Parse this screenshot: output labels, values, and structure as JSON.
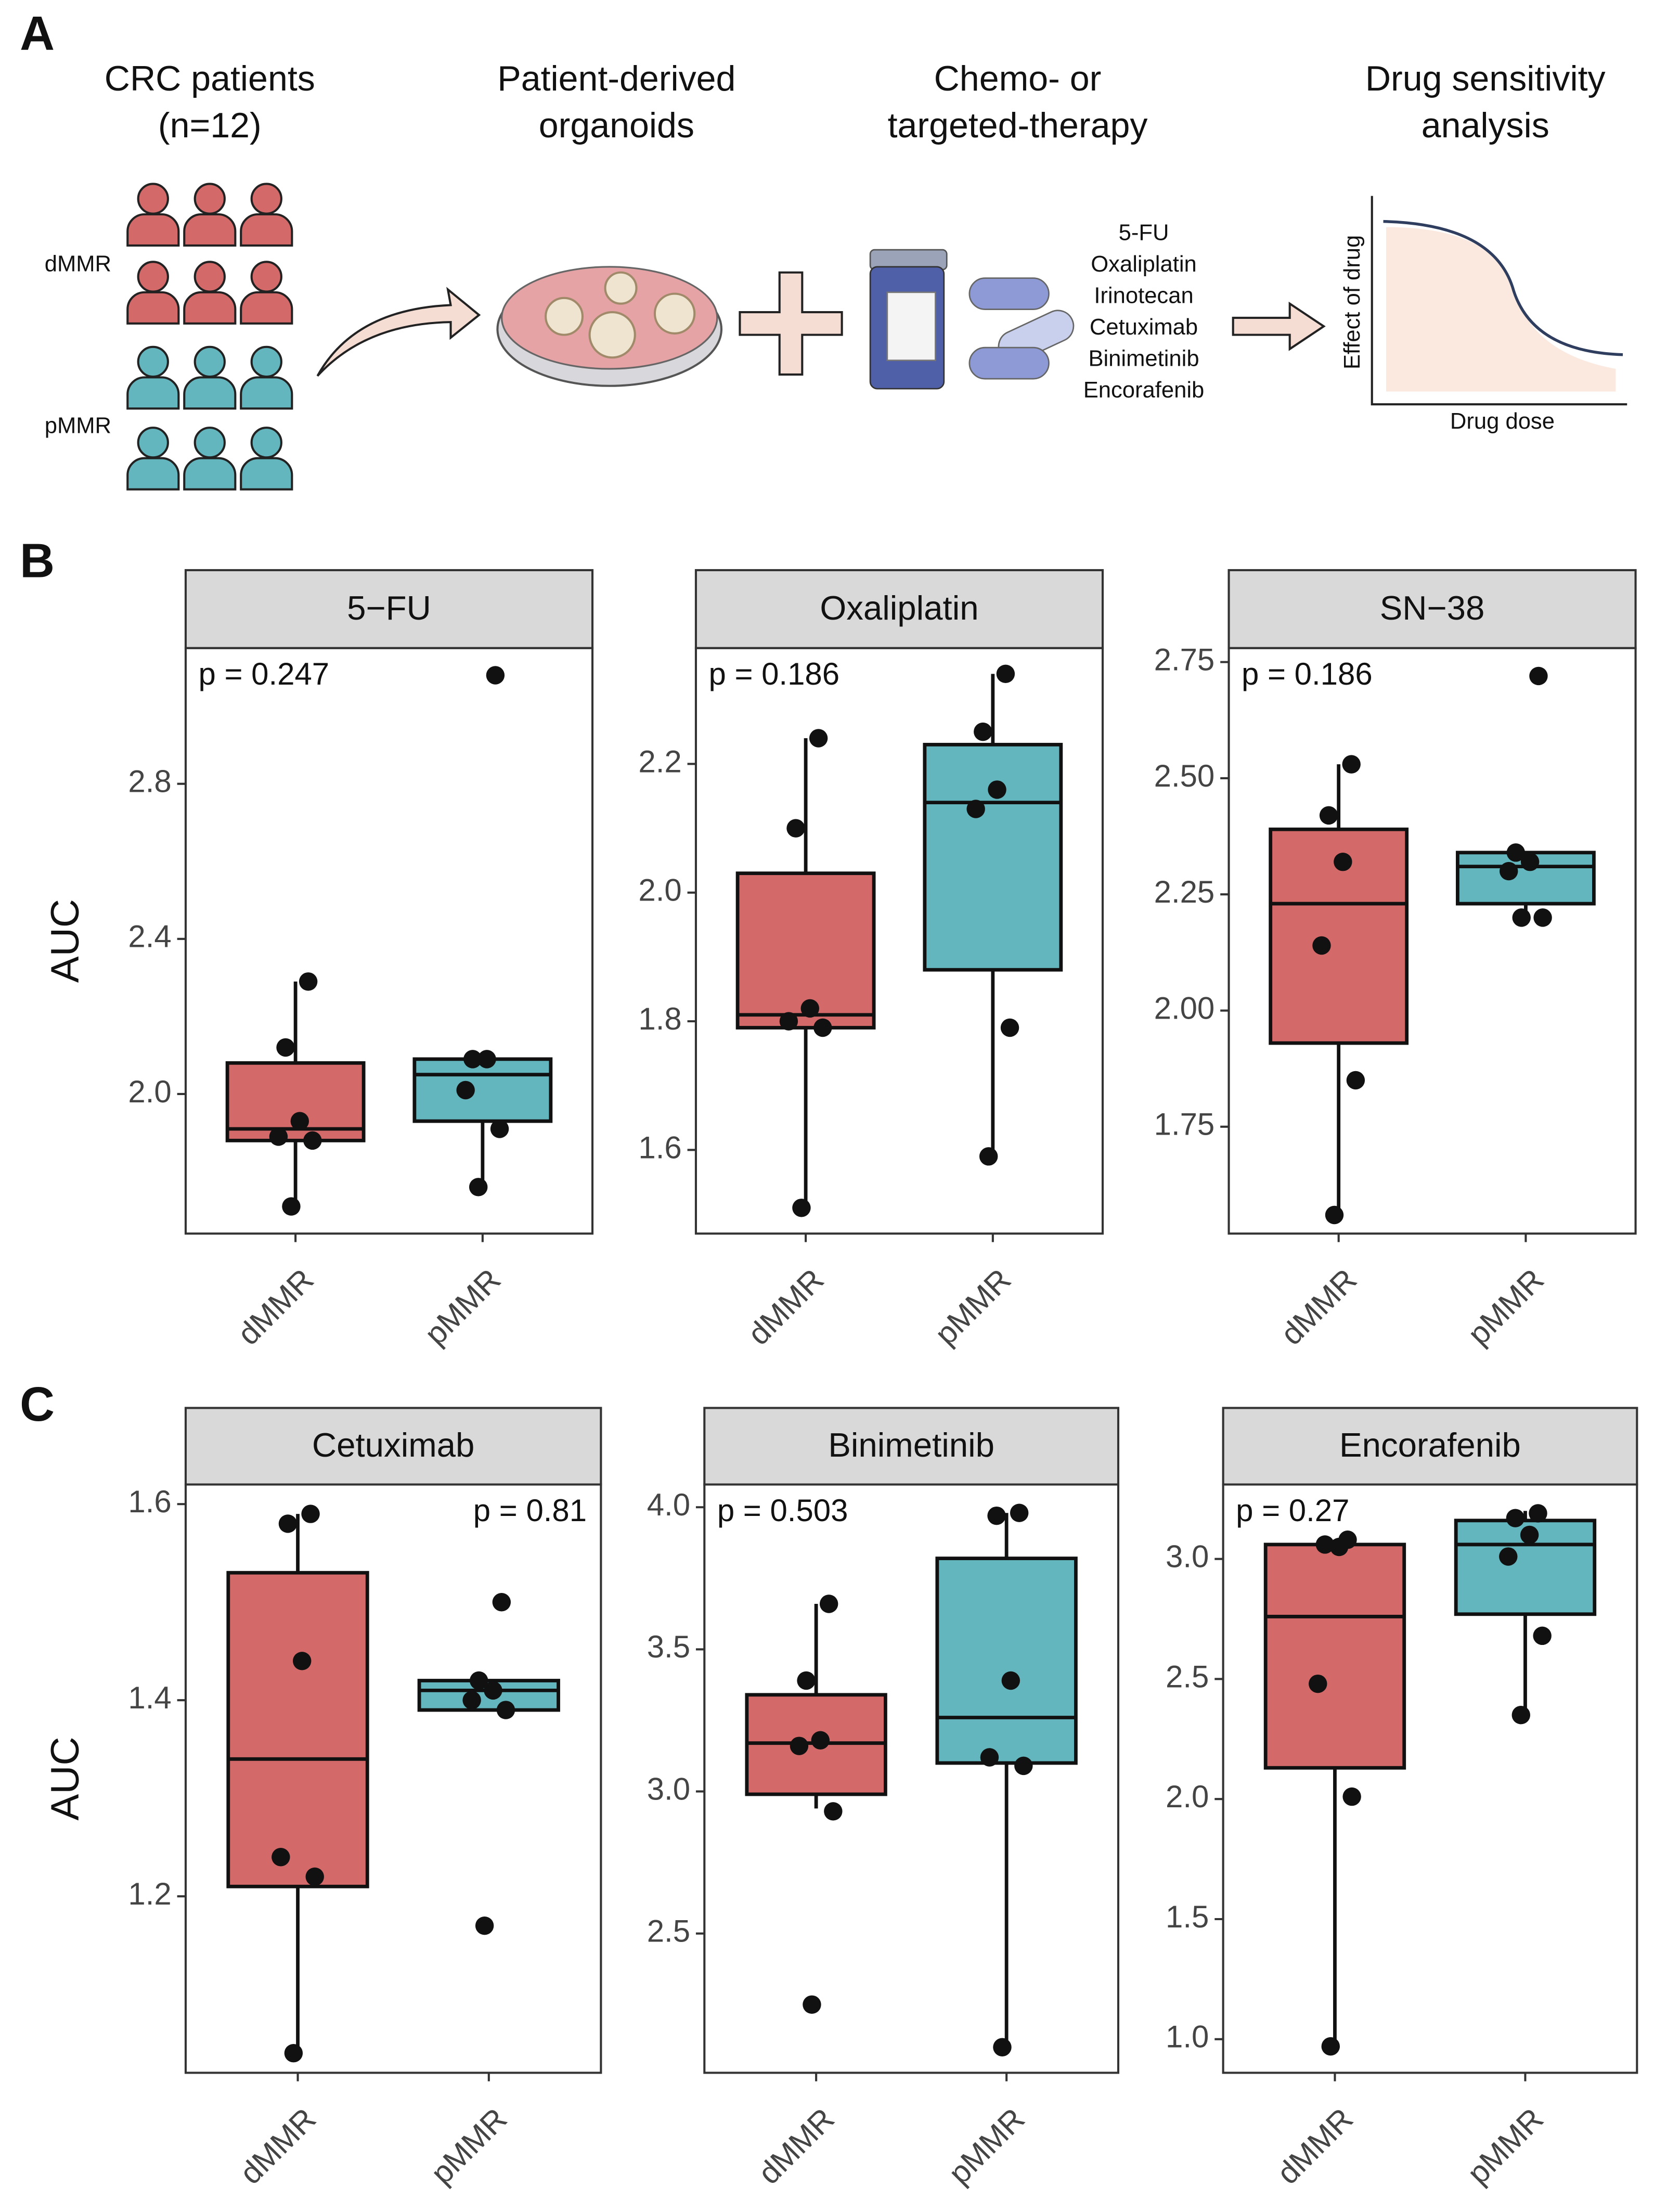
{
  "panel_labels": [
    "A",
    "B",
    "C"
  ],
  "schematic": {
    "steps": [
      {
        "title": [
          "CRC patients",
          "(n=12)"
        ]
      },
      {
        "title": [
          "Patient-derived",
          "organoids"
        ]
      },
      {
        "title": [
          "Chemo- or",
          "targeted-therapy"
        ]
      },
      {
        "title": [
          "Drug sensitivity",
          "analysis"
        ]
      }
    ],
    "groups": [
      "dMMR",
      "pMMR"
    ],
    "drugs": [
      "5-FU",
      "Oxaliplatin",
      "Irinotecan",
      "Cetuximab",
      "Binimetinib",
      "Encorafenib"
    ],
    "curve_y_label": "Effect of drug",
    "curve_x_label": "Drug dose"
  },
  "chart_data": [
    {
      "type": "box",
      "title": "5−FU",
      "annotation": "p =  0.247",
      "annotation_position": "top-left",
      "y_label": "AUC",
      "ylim": [
        1.64,
        3.15
      ],
      "yticks": [
        {
          "value": 2,
          "label": "2.0"
        },
        2.4,
        2.8
      ],
      "categories": [
        "dMMR",
        "pMMR"
      ],
      "boxes": [
        {
          "color": "#d4696a",
          "whisker_low": 1.71,
          "q1": 1.88,
          "median": 1.91,
          "q3": 2.08,
          "whisker_high": 2.29,
          "points": [
            2.29,
            2.12,
            1.93,
            1.89,
            1.88,
            1.71
          ]
        },
        {
          "color": "#63b6bd",
          "whisker_low": 1.76,
          "q1": 1.93,
          "median": 2.05,
          "q3": 2.09,
          "whisker_high": 2.09,
          "points": [
            3.08,
            2.09,
            2.09,
            2.01,
            1.91,
            1.76
          ]
        }
      ]
    },
    {
      "type": "box",
      "title": "Oxaliplatin",
      "annotation": "p =  0.186",
      "annotation_position": "top-left",
      "ylim": [
        1.47,
        2.38
      ],
      "yticks": [
        1.6,
        1.8,
        {
          "value": 2,
          "label": "2.0"
        },
        2.2
      ],
      "categories": [
        "dMMR",
        "pMMR"
      ],
      "boxes": [
        {
          "color": "#d4696a",
          "whisker_low": 1.51,
          "q1": 1.79,
          "median": 1.81,
          "q3": 2.03,
          "whisker_high": 2.24,
          "points": [
            2.24,
            2.1,
            1.82,
            1.8,
            1.79,
            1.51
          ]
        },
        {
          "color": "#63b6bd",
          "whisker_low": 1.59,
          "q1": 1.88,
          "median": 2.14,
          "q3": 2.23,
          "whisker_high": 2.34,
          "points": [
            2.34,
            2.25,
            2.16,
            2.13,
            1.79,
            1.59
          ]
        }
      ]
    },
    {
      "type": "box",
      "title": "SN−38",
      "annotation": "p =  0.186",
      "annotation_position": "top-left",
      "ylim": [
        1.52,
        2.78
      ],
      "yticks": [
        1.75,
        {
          "value": 2,
          "label": "2.00"
        },
        2.25,
        {
          "value": 2.5,
          "label": "2.50"
        },
        2.75
      ],
      "categories": [
        "dMMR",
        "pMMR"
      ],
      "boxes": [
        {
          "color": "#d4696a",
          "whisker_low": 1.56,
          "q1": 1.93,
          "median": 2.23,
          "q3": 2.39,
          "whisker_high": 2.53,
          "points": [
            2.53,
            2.42,
            2.32,
            2.14,
            1.85,
            1.56
          ]
        },
        {
          "color": "#63b6bd",
          "whisker_low": 2.2,
          "q1": 2.23,
          "median": 2.31,
          "q3": 2.34,
          "whisker_high": 2.34,
          "points": [
            2.72,
            2.34,
            2.32,
            2.3,
            2.2,
            2.2
          ]
        }
      ]
    },
    {
      "type": "box",
      "title": "Cetuximab",
      "annotation": "p =  0.81",
      "annotation_position": "top-right",
      "y_label": "AUC",
      "ylim": [
        1.02,
        1.62
      ],
      "yticks": [
        1.2,
        1.4,
        1.6
      ],
      "categories": [
        "dMMR",
        "pMMR"
      ],
      "boxes": [
        {
          "color": "#d4696a",
          "whisker_low": 1.04,
          "q1": 1.21,
          "median": 1.34,
          "q3": 1.53,
          "whisker_high": 1.59,
          "points": [
            1.59,
            1.58,
            1.44,
            1.24,
            1.22,
            1.04
          ]
        },
        {
          "color": "#63b6bd",
          "whisker_low": 1.39,
          "q1": 1.39,
          "median": 1.41,
          "q3": 1.42,
          "whisker_high": 1.42,
          "points": [
            1.5,
            1.42,
            1.41,
            1.4,
            1.39,
            1.17
          ]
        }
      ]
    },
    {
      "type": "box",
      "title": "Binimetinib",
      "annotation": "p =  0.503",
      "annotation_position": "top-left",
      "ylim": [
        2.01,
        4.08
      ],
      "yticks": [
        2.5,
        {
          "value": 3,
          "label": "3.0"
        },
        3.5,
        {
          "value": 4,
          "label": "4.0"
        }
      ],
      "categories": [
        "dMMR",
        "pMMR"
      ],
      "boxes": [
        {
          "color": "#d4696a",
          "whisker_low": 2.94,
          "q1": 2.99,
          "median": 3.17,
          "q3": 3.34,
          "whisker_high": 3.66,
          "points": [
            3.66,
            3.39,
            3.18,
            3.16,
            2.93,
            2.25
          ]
        },
        {
          "color": "#63b6bd",
          "whisker_low": 2.11,
          "q1": 3.1,
          "median": 3.26,
          "q3": 3.82,
          "whisker_high": 3.98,
          "points": [
            3.98,
            3.97,
            3.39,
            3.12,
            3.09,
            2.1
          ]
        }
      ]
    },
    {
      "type": "box",
      "title": "Encorafenib",
      "annotation": "p =  0.27",
      "annotation_position": "top-left",
      "ylim": [
        0.86,
        3.31
      ],
      "yticks": [
        {
          "value": 1,
          "label": "1.0"
        },
        1.5,
        {
          "value": 2,
          "label": "2.0"
        },
        2.5,
        {
          "value": 3,
          "label": "3.0"
        }
      ],
      "categories": [
        "dMMR",
        "pMMR"
      ],
      "boxes": [
        {
          "color": "#d4696a",
          "whisker_low": 0.98,
          "q1": 2.13,
          "median": 2.76,
          "q3": 3.06,
          "whisker_high": 3.08,
          "points": [
            3.08,
            3.06,
            3.05,
            2.48,
            2.01,
            0.97
          ]
        },
        {
          "color": "#63b6bd",
          "whisker_low": 2.36,
          "q1": 2.77,
          "median": 3.06,
          "q3": 3.16,
          "whisker_high": 3.2,
          "points": [
            3.19,
            3.17,
            3.1,
            3.01,
            2.68,
            2.35
          ]
        }
      ]
    }
  ]
}
